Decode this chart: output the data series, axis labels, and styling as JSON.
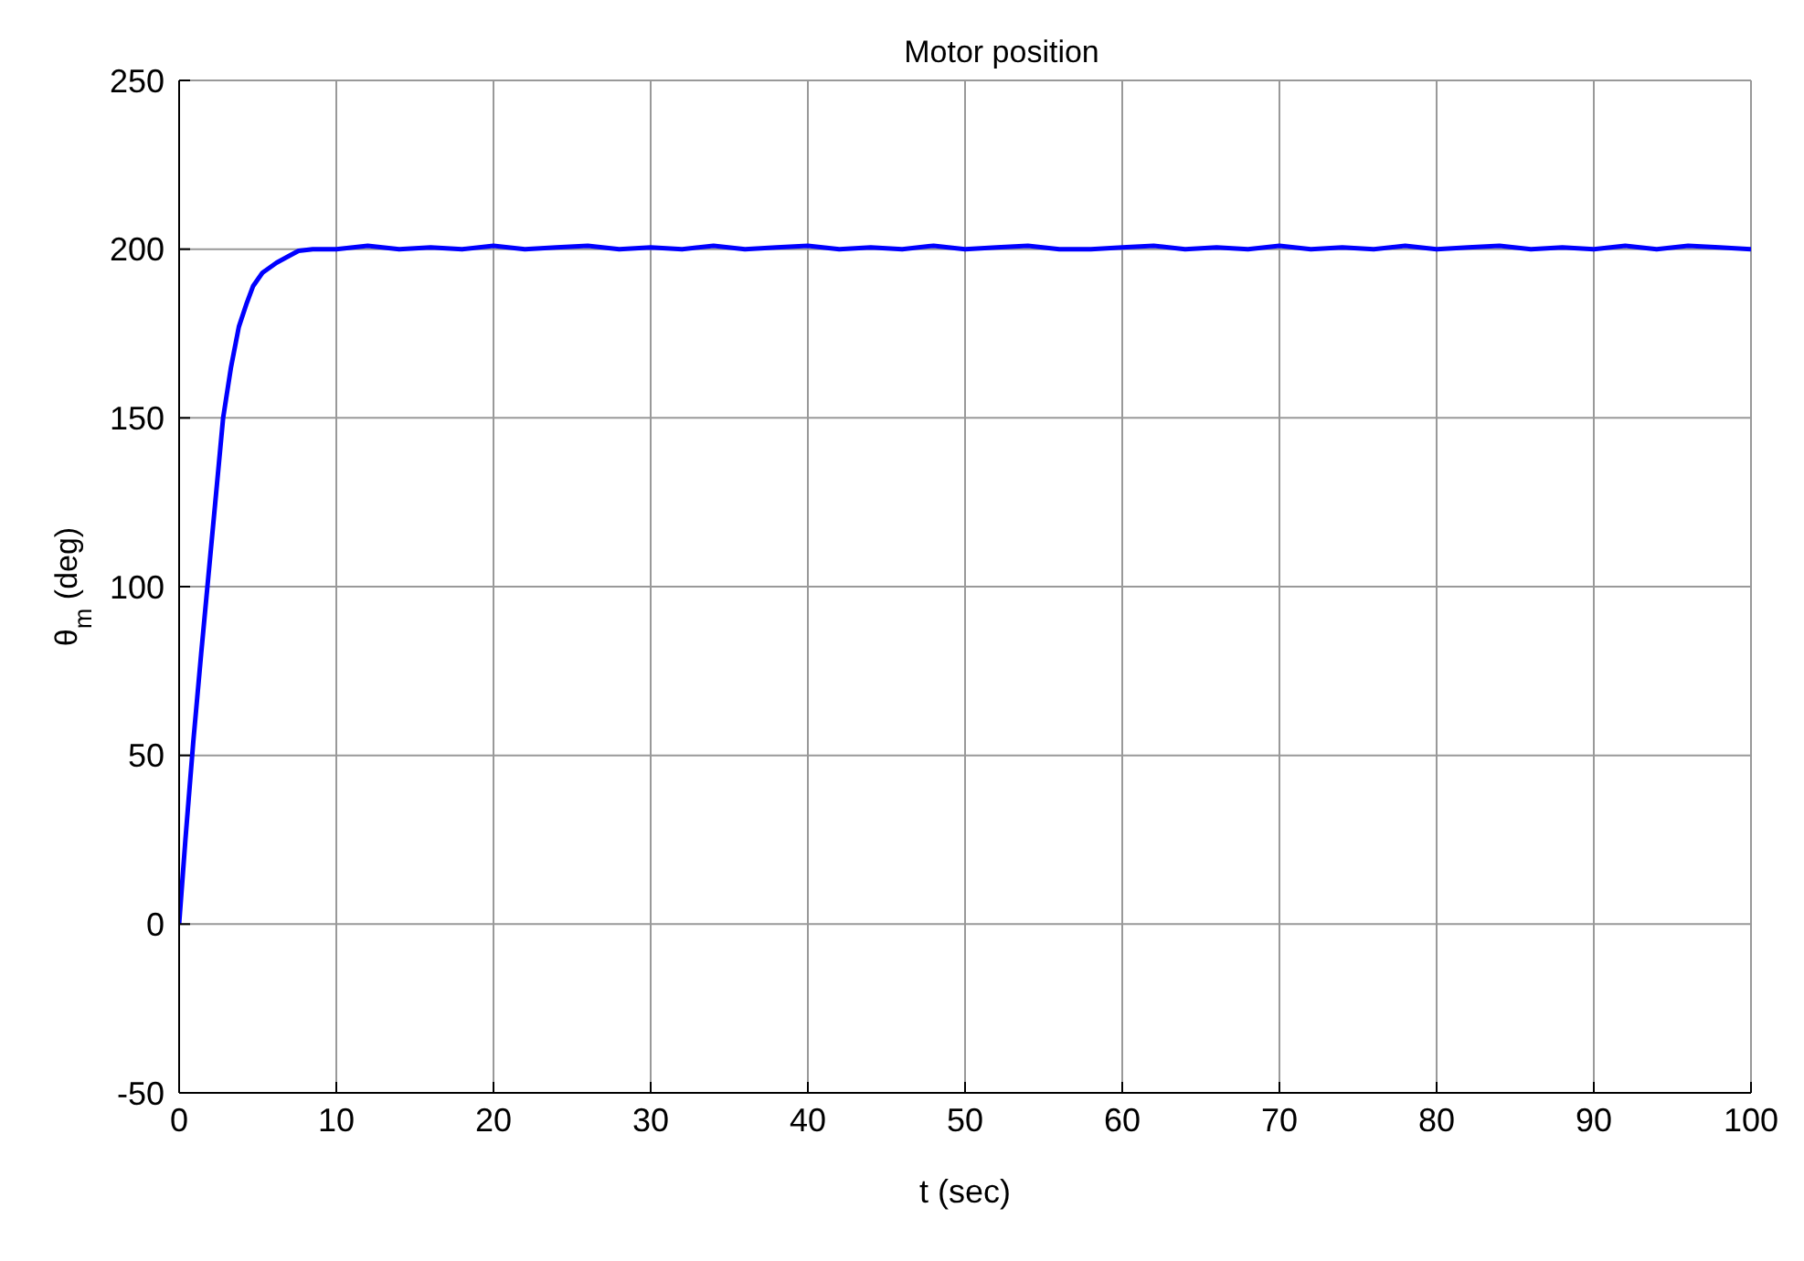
{
  "chart_data": {
    "type": "line",
    "title": "Motor position",
    "xlabel": "t (sec)",
    "ylabel": "θ$_{m}$ (deg)",
    "x": [
      0,
      0.4,
      0.9,
      1.4,
      1.8,
      2.3,
      2.8,
      3.3,
      3.8,
      4.3,
      4.7,
      5.3,
      6.2,
      7,
      7.6,
      8.5,
      10,
      12,
      14,
      16,
      18,
      20,
      22,
      24,
      26,
      28,
      30,
      32,
      34,
      36,
      38,
      40,
      42,
      44,
      46,
      48,
      50,
      52,
      54,
      56,
      58,
      60,
      62,
      64,
      66,
      68,
      70,
      72,
      74,
      76,
      78,
      80,
      82,
      84,
      86,
      88,
      90,
      92,
      94,
      96,
      98,
      100
    ],
    "series": [
      {
        "color": "#0000ff",
        "values": [
          0,
          25,
          54,
          80,
          100,
          125,
          150,
          165,
          177,
          184,
          189,
          193,
          196,
          198,
          199.5,
          200,
          200,
          201,
          200,
          200.5,
          200,
          201,
          200,
          200.5,
          201,
          200,
          200.5,
          200,
          201,
          200,
          200.5,
          201,
          200,
          200.5,
          200,
          201,
          200,
          200.5,
          201,
          200,
          200,
          200.5,
          201,
          200,
          200.5,
          200,
          201,
          200,
          200.5,
          200,
          201,
          200,
          200.5,
          201,
          200,
          200.5,
          200,
          201,
          200,
          201,
          200.5,
          200
        ]
      }
    ],
    "xlim": [
      0,
      100
    ],
    "xticks": [
      0,
      10,
      20,
      30,
      40,
      50,
      60,
      70,
      80,
      90,
      100
    ],
    "ylim": [
      -50,
      250
    ],
    "yticks": [
      -50,
      0,
      50,
      100,
      150,
      200,
      250
    ],
    "grid": true,
    "line_style": "solid",
    "marker": "none",
    "legend": false
  }
}
